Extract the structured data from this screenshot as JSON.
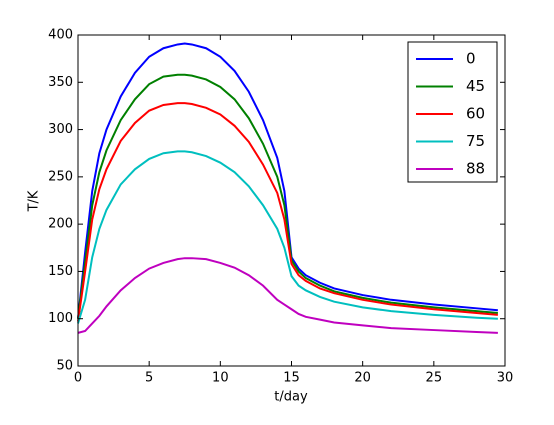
{
  "chart_data": {
    "type": "line",
    "xlabel": "t/day",
    "ylabel": "T/K",
    "x": [
      0,
      0.5,
      1,
      1.5,
      2,
      3,
      4,
      5,
      6,
      7,
      7.5,
      8,
      9,
      10,
      11,
      12,
      13,
      14,
      14.5,
      15,
      15.5,
      16,
      17,
      18,
      20,
      22,
      25,
      28,
      29.5
    ],
    "series": [
      {
        "name": "0",
        "color": "#0000ff",
        "values": [
          100,
          170,
          235,
          275,
          300,
          335,
          360,
          377,
          386,
          390,
          391,
          390,
          386,
          377,
          362,
          340,
          310,
          270,
          235,
          165,
          153,
          146,
          138,
          132,
          125,
          120,
          115,
          111,
          109
        ]
      },
      {
        "name": "45",
        "color": "#008000",
        "values": [
          100,
          160,
          220,
          255,
          278,
          310,
          332,
          348,
          356,
          358,
          358,
          357,
          353,
          345,
          332,
          312,
          285,
          250,
          220,
          162,
          150,
          143,
          135,
          129,
          122,
          117,
          112,
          108,
          106
        ]
      },
      {
        "name": "60",
        "color": "#ff0000",
        "values": [
          97,
          150,
          205,
          237,
          258,
          288,
          307,
          320,
          326,
          328,
          328,
          327,
          323,
          316,
          304,
          287,
          263,
          233,
          205,
          158,
          146,
          140,
          132,
          127,
          120,
          115,
          110,
          106,
          104
        ]
      },
      {
        "name": "75",
        "color": "#00bfbf",
        "values": [
          95,
          120,
          165,
          195,
          215,
          242,
          258,
          269,
          275,
          277,
          277,
          276,
          272,
          265,
          255,
          240,
          220,
          195,
          175,
          145,
          135,
          130,
          123,
          118,
          112,
          108,
          104,
          101,
          100
        ]
      },
      {
        "name": "88",
        "color": "#bf00bf",
        "values": [
          85,
          87,
          95,
          103,
          113,
          130,
          143,
          153,
          159,
          163,
          164,
          164,
          163,
          159,
          154,
          146,
          135,
          120,
          115,
          110,
          105,
          102,
          99,
          96,
          93,
          90,
          88,
          86,
          85
        ]
      }
    ],
    "xlim": [
      0,
      30
    ],
    "ylim": [
      50,
      400
    ],
    "xticks": [
      0,
      5,
      10,
      15,
      20,
      25,
      30
    ],
    "yticks": [
      50,
      100,
      150,
      200,
      250,
      300,
      350,
      400
    ],
    "legend": "upper right"
  }
}
